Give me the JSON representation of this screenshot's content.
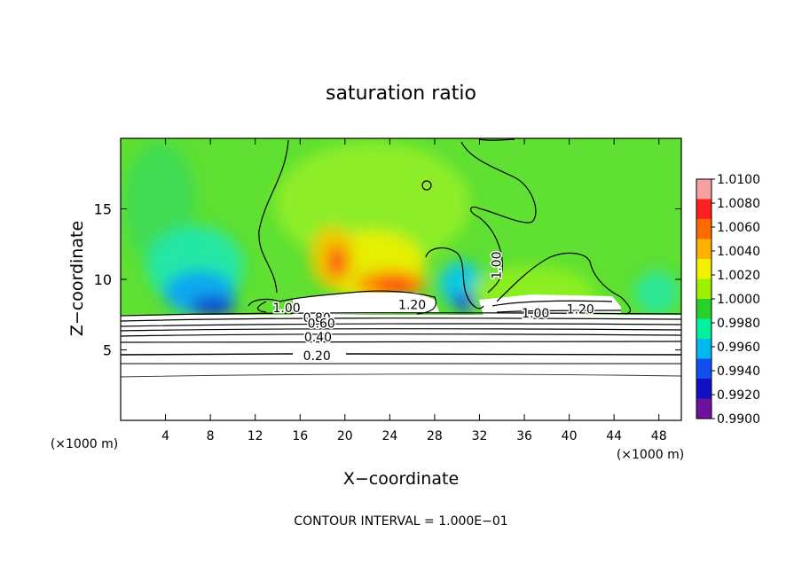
{
  "chart_data": {
    "type": "heatmap",
    "title": "saturation ratio",
    "xlabel": "X−coordinate",
    "ylabel": "Z−coordinate",
    "x_unit_left": "(×1000 m)",
    "x_unit_right": "(×1000 m)",
    "xlim": [
      0,
      50
    ],
    "ylim": [
      0,
      20
    ],
    "x_ticks": [
      "4",
      "8",
      "12",
      "16",
      "20",
      "24",
      "28",
      "32",
      "36",
      "40",
      "44",
      "48"
    ],
    "y_ticks": [
      "5",
      "10",
      "15"
    ],
    "colorbar": {
      "labels": [
        "1.0100",
        "1.0080",
        "1.0060",
        "1.0040",
        "1.0020",
        "1.0000",
        "0.9980",
        "0.9960",
        "0.9940",
        "0.9920",
        "0.9900"
      ],
      "colors": [
        "#f7a0a0",
        "#ff2020",
        "#ff6a00",
        "#ffb000",
        "#f0f000",
        "#9cf000",
        "#28d028",
        "#00f0a0",
        "#00b8f0",
        "#1050f0",
        "#1010c0",
        "#7010a0"
      ]
    },
    "contour_labels": [
      {
        "text": "1.00",
        "x": 14.8,
        "z": 8.0
      },
      {
        "text": "0.80",
        "x": 17.5,
        "z": 7.3
      },
      {
        "text": "0.60",
        "x": 17.9,
        "z": 6.9
      },
      {
        "text": "0.40",
        "x": 17.6,
        "z": 5.9
      },
      {
        "text": "0.20",
        "x": 17.5,
        "z": 4.6
      },
      {
        "text": "1.20",
        "x": 26.0,
        "z": 8.2
      },
      {
        "text": "1.00",
        "x": 33.5,
        "z": 11.0
      },
      {
        "text": "1.00",
        "x": 37.0,
        "z": 7.6
      },
      {
        "text": "1.20",
        "x": 41.0,
        "z": 7.9
      }
    ],
    "footer": "CONTOUR INTERVAL = 1.000E−01"
  }
}
